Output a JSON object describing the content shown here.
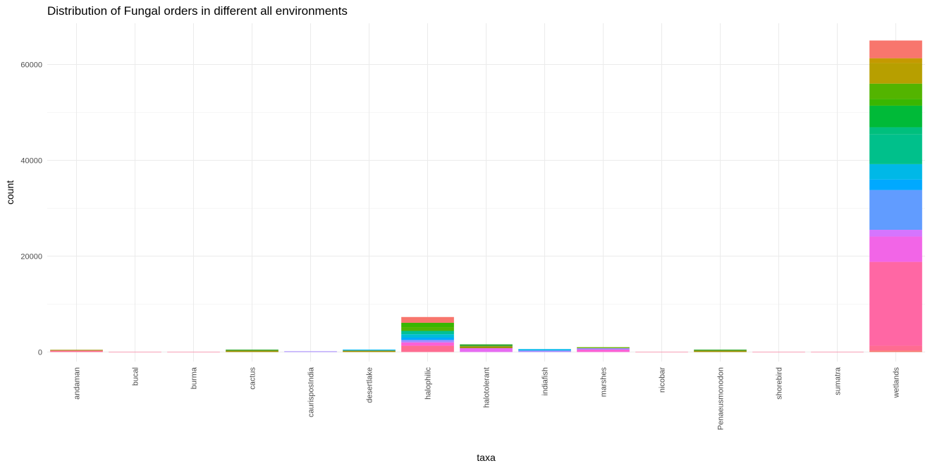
{
  "chart_data": {
    "type": "bar",
    "stacked": true,
    "title": "Distribution of Fungal orders in different all environments",
    "xlabel": "taxa",
    "ylabel": "count",
    "ylim": [
      -2000,
      68600
    ],
    "y_ticks": [
      0,
      20000,
      40000,
      60000
    ],
    "grid": true,
    "legend": "none",
    "categories": [
      "andaman",
      "bucal",
      "burma",
      "cactus",
      "caurisposIndia",
      "desertlake",
      "halophilic",
      "halotolerant",
      "indiafish",
      "marshes",
      "nicobar",
      "Penaeusmonodon",
      "shorebird",
      "sumatra",
      "wetlands"
    ],
    "stacks": [
      [
        {
          "value": 300,
          "color": "#FF6C91"
        },
        {
          "value": 150,
          "color": "#9D8E00"
        }
      ],
      [
        {
          "value": 60,
          "color": "#FF6C91"
        }
      ],
      [
        {
          "value": 60,
          "color": "#FF6C91"
        }
      ],
      [
        {
          "value": 300,
          "color": "#9D8E00"
        },
        {
          "value": 200,
          "color": "#3AAA35"
        }
      ],
      [
        {
          "value": 150,
          "color": "#A58AFF"
        }
      ],
      [
        {
          "value": 300,
          "color": "#9D8E00"
        },
        {
          "value": 200,
          "color": "#00B6EB"
        }
      ],
      [
        {
          "value": 1300,
          "color": "#FF6C91"
        },
        {
          "value": 700,
          "color": "#FB61D7"
        },
        {
          "value": 500,
          "color": "#A58AFF"
        },
        {
          "value": 500,
          "color": "#00A9FF"
        },
        {
          "value": 700,
          "color": "#00BCD8"
        },
        {
          "value": 700,
          "color": "#00C094"
        },
        {
          "value": 800,
          "color": "#53B400"
        },
        {
          "value": 900,
          "color": "#39B600"
        },
        {
          "value": 1200,
          "color": "#F8766D"
        }
      ],
      [
        {
          "value": 800,
          "color": "#E76BF3"
        },
        {
          "value": 400,
          "color": "#9D8E00"
        },
        {
          "value": 400,
          "color": "#3AAA35"
        }
      ],
      [
        {
          "value": 300,
          "color": "#A58AFF"
        },
        {
          "value": 300,
          "color": "#00B6EB"
        }
      ],
      [
        {
          "value": 500,
          "color": "#FB61D7"
        },
        {
          "value": 300,
          "color": "#A58AFF"
        },
        {
          "value": 200,
          "color": "#6BB100"
        }
      ],
      [
        {
          "value": 60,
          "color": "#FF6C91"
        }
      ],
      [
        {
          "value": 300,
          "color": "#9D8E00"
        },
        {
          "value": 200,
          "color": "#3AAA35"
        }
      ],
      [
        {
          "value": 60,
          "color": "#FF6C91"
        }
      ],
      [
        {
          "value": 60,
          "color": "#FF6C91"
        }
      ],
      [
        {
          "value": 300,
          "color": "#F8766D"
        },
        {
          "value": 1000,
          "color": "#FF6C91"
        },
        {
          "value": 17500,
          "color": "#FF67A4"
        },
        {
          "value": 5300,
          "color": "#F265E7"
        },
        {
          "value": 1400,
          "color": "#D575FE"
        },
        {
          "value": 8300,
          "color": "#619CFF"
        },
        {
          "value": 2200,
          "color": "#00A9FF"
        },
        {
          "value": 3200,
          "color": "#00B8E7"
        },
        {
          "value": 6200,
          "color": "#00C08B"
        },
        {
          "value": 1500,
          "color": "#00BF7D"
        },
        {
          "value": 4500,
          "color": "#00BA38"
        },
        {
          "value": 1400,
          "color": "#39B600"
        },
        {
          "value": 3200,
          "color": "#53B400"
        },
        {
          "value": 4300,
          "color": "#B79F00"
        },
        {
          "value": 1000,
          "color": "#C49A00"
        },
        {
          "value": 3700,
          "color": "#F8766D"
        }
      ]
    ]
  }
}
